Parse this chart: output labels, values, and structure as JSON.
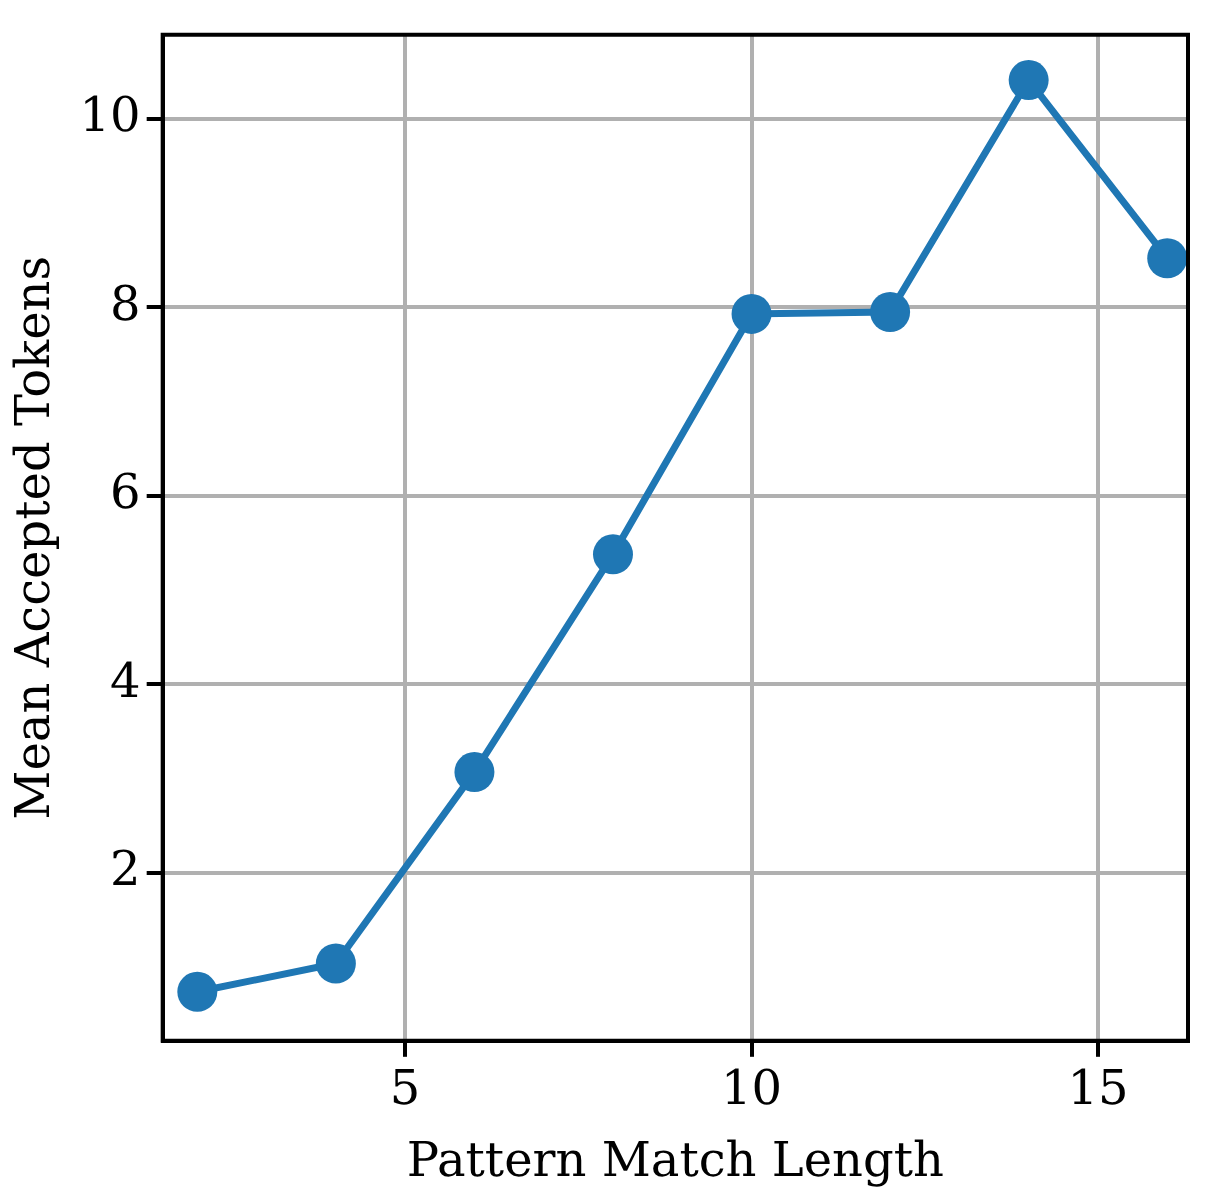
{
  "chart_data": {
    "type": "line",
    "xlabel": "Pattern Match Length",
    "ylabel": "Mean Accepted Tokens",
    "x": [
      2,
      4,
      6,
      8,
      10,
      12,
      14,
      16
    ],
    "series": [
      {
        "color": "#1f77b4",
        "values": [
          0.74,
          1.04,
          3.07,
          5.38,
          7.93,
          7.95,
          10.41,
          8.52
        ]
      }
    ],
    "xlim": [
      1.5,
      16.3
    ],
    "xticks": [
      5,
      10,
      15
    ],
    "ylim": [
      0.22,
      10.89
    ],
    "yticks": [
      2,
      4,
      6,
      8,
      10
    ],
    "grid": true,
    "marker": "circle",
    "line_style": "solid",
    "legend": false
  }
}
